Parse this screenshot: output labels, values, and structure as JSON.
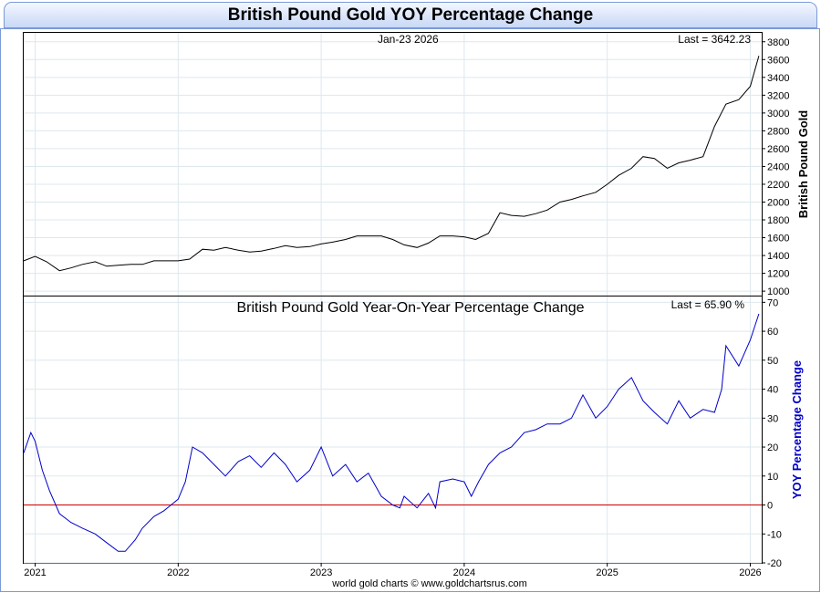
{
  "page_title": "British Pound Gold YOY Percentage Change",
  "top_panel": {
    "date_label": "Jan-23  2026",
    "last_label": "Last = 3642.23",
    "ylabel": "British Pound Gold"
  },
  "bottom_panel": {
    "title": "British Pound Gold Year-On-Year Percentage Change",
    "last_label": "Last = 65.90 %",
    "ylabel": "YOY Percentage Change"
  },
  "footer": "world gold charts © www.goldchartsrus.com",
  "colors": {
    "price_line": "#000000",
    "yoy_line": "#0000cc",
    "zero_line": "#cc0000",
    "grid": "#dde8ee",
    "yoy_label": "#0000cc"
  },
  "chart_data": [
    {
      "type": "line",
      "title": "",
      "ylabel": "British Pound Gold",
      "ylim": [
        950,
        3900
      ],
      "yticks": [
        1000,
        1200,
        1400,
        1600,
        1800,
        2000,
        2200,
        2400,
        2600,
        2800,
        3000,
        3200,
        3400,
        3600,
        3800
      ],
      "xlim": [
        2020.92,
        2026.08
      ],
      "xticks": [
        2021,
        2022,
        2023,
        2024,
        2025,
        2026
      ],
      "xtick_labels": [
        "2021",
        "2022",
        "2023",
        "2024",
        "2025",
        "2026"
      ],
      "series": [
        {
          "x": [
            2020.92,
            2021.0,
            2021.08,
            2021.17,
            2021.25,
            2021.33,
            2021.42,
            2021.5,
            2021.58,
            2021.67,
            2021.75,
            2021.83,
            2021.92,
            2022.0,
            2022.08,
            2022.17,
            2022.25,
            2022.33,
            2022.42,
            2022.5,
            2022.58,
            2022.67,
            2022.75,
            2022.83,
            2022.92,
            2023.0,
            2023.08,
            2023.17,
            2023.25,
            2023.33,
            2023.42,
            2023.5,
            2023.58,
            2023.67,
            2023.75,
            2023.83,
            2023.92,
            2024.0,
            2024.08,
            2024.17,
            2024.25,
            2024.33,
            2024.42,
            2024.5,
            2024.58,
            2024.67,
            2024.75,
            2024.83,
            2024.92,
            2025.0,
            2025.08,
            2025.17,
            2025.25,
            2025.33,
            2025.42,
            2025.5,
            2025.58,
            2025.67,
            2025.75,
            2025.83,
            2025.92,
            2026.0,
            2026.06
          ],
          "values": [
            1340,
            1390,
            1330,
            1230,
            1260,
            1300,
            1330,
            1280,
            1290,
            1300,
            1300,
            1340,
            1340,
            1340,
            1360,
            1470,
            1460,
            1490,
            1460,
            1440,
            1450,
            1480,
            1510,
            1490,
            1500,
            1530,
            1550,
            1580,
            1620,
            1620,
            1620,
            1580,
            1520,
            1490,
            1540,
            1620,
            1620,
            1610,
            1580,
            1650,
            1880,
            1850,
            1840,
            1870,
            1910,
            2000,
            2030,
            2070,
            2110,
            2200,
            2300,
            2380,
            2510,
            2490,
            2380,
            2440,
            2470,
            2510,
            2850,
            3100,
            3150,
            3300,
            3642
          ]
        }
      ]
    },
    {
      "type": "line",
      "title": "British Pound Gold Year-On-Year Percentage Change",
      "ylabel": "YOY Percentage Change",
      "ylim": [
        -20,
        72
      ],
      "yticks": [
        -20,
        -10,
        0,
        10,
        20,
        30,
        40,
        50,
        60,
        70
      ],
      "xlim": [
        2020.92,
        2026.08
      ],
      "xticks": [
        2021,
        2022,
        2023,
        2024,
        2025,
        2026
      ],
      "xtick_labels": [
        "2021",
        "2022",
        "2023",
        "2024",
        "2025",
        "2026"
      ],
      "reference_line": 0,
      "series": [
        {
          "x": [
            2020.92,
            2020.97,
            2021.0,
            2021.05,
            2021.1,
            2021.17,
            2021.25,
            2021.33,
            2021.42,
            2021.5,
            2021.58,
            2021.63,
            2021.7,
            2021.75,
            2021.83,
            2021.9,
            2021.95,
            2022.0,
            2022.05,
            2022.1,
            2022.17,
            2022.25,
            2022.33,
            2022.42,
            2022.5,
            2022.58,
            2022.67,
            2022.75,
            2022.83,
            2022.92,
            2023.0,
            2023.08,
            2023.17,
            2023.25,
            2023.33,
            2023.42,
            2023.5,
            2023.55,
            2023.58,
            2023.67,
            2023.75,
            2023.8,
            2023.83,
            2023.92,
            2024.0,
            2024.05,
            2024.1,
            2024.17,
            2024.25,
            2024.33,
            2024.42,
            2024.5,
            2024.58,
            2024.67,
            2024.75,
            2024.83,
            2024.92,
            2025.0,
            2025.08,
            2025.17,
            2025.25,
            2025.33,
            2025.42,
            2025.5,
            2025.58,
            2025.67,
            2025.75,
            2025.8,
            2025.83,
            2025.92,
            2026.0,
            2026.06
          ],
          "values": [
            18,
            25,
            22,
            12,
            5,
            -3,
            -6,
            -8,
            -10,
            -13,
            -16,
            -16,
            -12,
            -8,
            -4,
            -2,
            0,
            2,
            8,
            20,
            18,
            14,
            10,
            15,
            17,
            13,
            18,
            14,
            8,
            12,
            20,
            10,
            14,
            8,
            11,
            3,
            0,
            -1,
            3,
            -1,
            4,
            -1,
            8,
            9,
            8,
            3,
            8,
            14,
            18,
            20,
            25,
            26,
            28,
            28,
            30,
            38,
            30,
            34,
            40,
            44,
            36,
            32,
            28,
            36,
            30,
            33,
            32,
            40,
            55,
            48,
            57,
            66
          ]
        }
      ]
    }
  ]
}
